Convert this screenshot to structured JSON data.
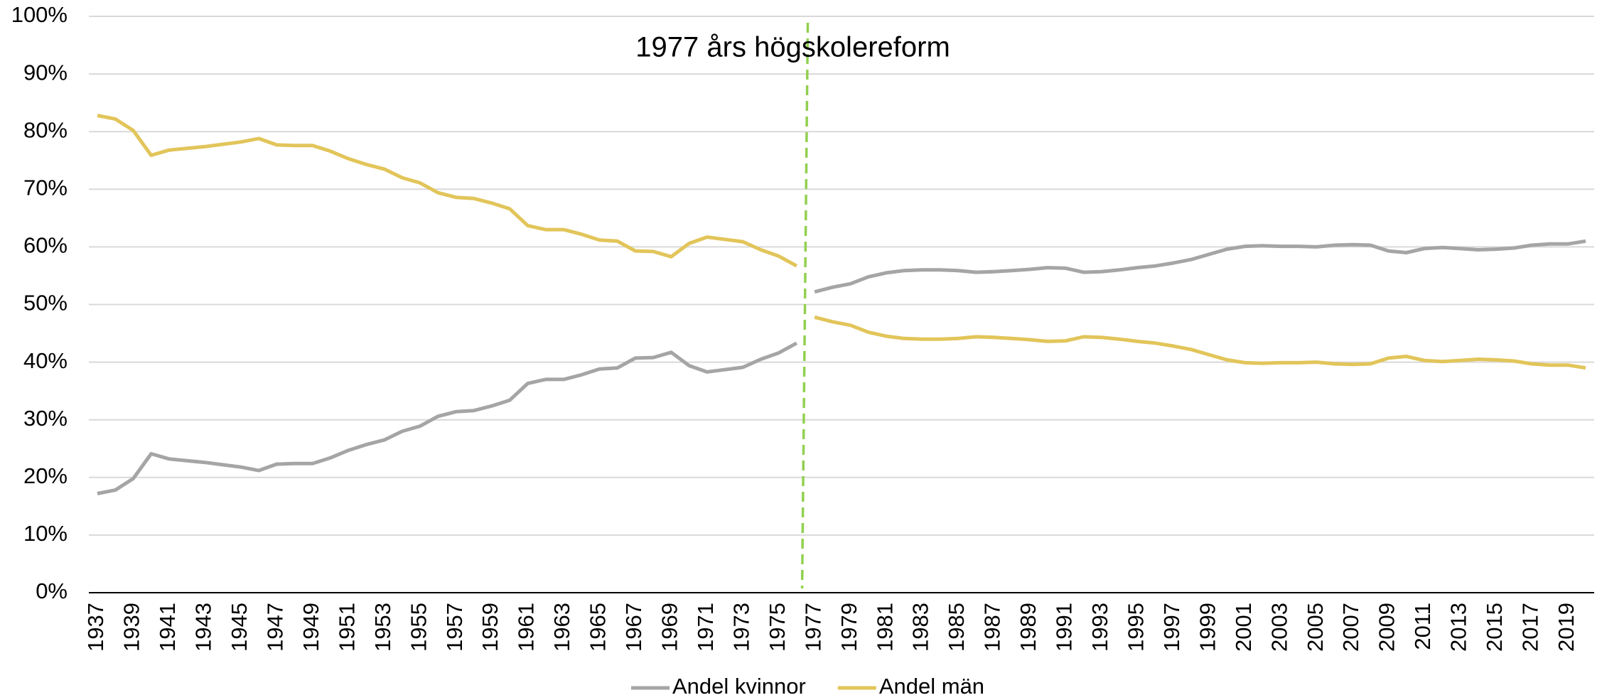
{
  "chart_data": {
    "type": "line",
    "annotation": {
      "text": "1977 års högskolereform",
      "x": "1977",
      "color": "#92d050"
    },
    "categories": [
      "1937",
      null,
      "1939",
      null,
      "1941",
      null,
      "1943",
      null,
      "1945",
      null,
      "1947",
      null,
      "1949",
      null,
      "1951",
      null,
      "1953",
      null,
      "1955",
      null,
      "1957",
      null,
      "1959",
      null,
      "1961",
      null,
      "1963",
      null,
      "1965",
      null,
      "1967",
      null,
      "1969",
      null,
      "1971",
      null,
      "1973",
      null,
      "1975",
      null,
      "1977",
      null,
      "1979",
      null,
      "1981",
      null,
      "1983",
      null,
      "1985",
      null,
      "1987",
      null,
      "1989",
      null,
      "1991",
      null,
      "1993",
      null,
      "1995",
      null,
      "1997",
      null,
      "1999",
      null,
      "2001",
      null,
      "2003",
      null,
      "2005",
      null,
      "2007",
      null,
      "2009",
      null,
      "2011",
      null,
      "2013",
      null,
      "2015",
      null,
      "2017",
      null,
      "2019",
      null
    ],
    "series": [
      {
        "name": "Andel kvinnor",
        "color": "#a5a5a5",
        "values": [
          17.2,
          17.8,
          19.8,
          24.1,
          23.2,
          22.9,
          22.6,
          22.2,
          21.8,
          21.2,
          22.3,
          22.4,
          22.4,
          23.4,
          24.7,
          25.7,
          26.5,
          28.0,
          28.9,
          30.6,
          31.4,
          31.6,
          32.4,
          33.4,
          36.3,
          37.0,
          37.0,
          37.8,
          38.8,
          39.0,
          40.7,
          40.8,
          41.7,
          39.4,
          38.3,
          38.7,
          39.1,
          40.5,
          41.6,
          43.3,
          52.2,
          53.0,
          53.6,
          54.8,
          55.5,
          55.9,
          56.0,
          56.0,
          55.9,
          55.6,
          55.7,
          55.9,
          56.1,
          56.4,
          56.3,
          55.6,
          55.7,
          56.0,
          56.4,
          56.7,
          57.2,
          57.8,
          58.7,
          59.6,
          60.1,
          60.2,
          60.1,
          60.1,
          60.0,
          60.3,
          60.4,
          60.3,
          59.3,
          59.0,
          59.7,
          59.9,
          59.7,
          59.5,
          59.6,
          59.8,
          60.3,
          60.5,
          60.5,
          61.0
        ]
      },
      {
        "name": "Andel män",
        "color": "#e2c55a",
        "values": [
          82.8,
          82.2,
          80.2,
          75.9,
          76.8,
          77.1,
          77.4,
          77.8,
          78.2,
          78.8,
          77.7,
          77.6,
          77.6,
          76.6,
          75.3,
          74.3,
          73.5,
          72.0,
          71.1,
          69.4,
          68.6,
          68.4,
          67.6,
          66.6,
          63.7,
          63.0,
          63.0,
          62.2,
          61.2,
          61.0,
          59.3,
          59.2,
          58.3,
          60.6,
          61.7,
          61.3,
          60.9,
          59.5,
          58.4,
          56.7,
          47.8,
          47.0,
          46.4,
          45.2,
          44.5,
          44.1,
          44.0,
          44.0,
          44.1,
          44.4,
          44.3,
          44.1,
          43.9,
          43.6,
          43.7,
          44.4,
          44.3,
          44.0,
          43.6,
          43.3,
          42.8,
          42.2,
          41.3,
          40.4,
          39.9,
          39.8,
          39.9,
          39.9,
          40.0,
          39.7,
          39.6,
          39.7,
          40.7,
          41.0,
          40.3,
          40.1,
          40.3,
          40.5,
          40.4,
          40.2,
          39.7,
          39.5,
          39.5,
          39.0
        ]
      }
    ],
    "ylim": [
      0,
      100
    ],
    "yticks": [
      {
        "value": 0,
        "label": "0%"
      },
      {
        "value": 10,
        "label": "10%"
      },
      {
        "value": 20,
        "label": "20%"
      },
      {
        "value": 30,
        "label": "30%"
      },
      {
        "value": 40,
        "label": "40%"
      },
      {
        "value": 50,
        "label": "50%"
      },
      {
        "value": 60,
        "label": "60%"
      },
      {
        "value": 70,
        "label": "70%"
      },
      {
        "value": 80,
        "label": "80%"
      },
      {
        "value": 90,
        "label": "90%"
      },
      {
        "value": 100,
        "label": "100%"
      }
    ],
    "grid": true,
    "legend": "bottom"
  }
}
